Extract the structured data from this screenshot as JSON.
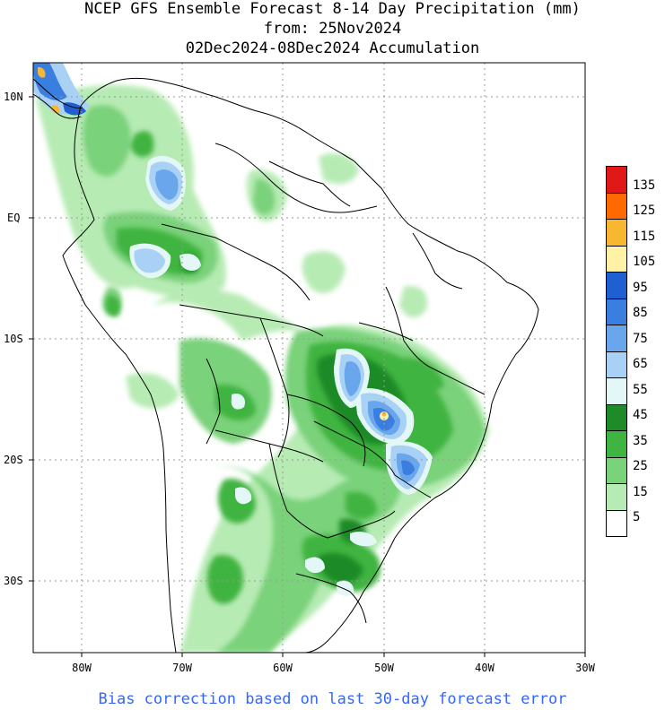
{
  "title": {
    "line1": "NCEP GFS Ensemble Forecast 8-14 Day Precipitation (mm)",
    "line2": "from: 25Nov2024",
    "line3": "02Dec2024-08Dec2024 Accumulation"
  },
  "axes": {
    "lat_labels": [
      "10N",
      "EQ",
      "10S",
      "20S",
      "30S"
    ],
    "lon_labels": [
      "80W",
      "70W",
      "60W",
      "50W",
      "40W",
      "30W"
    ]
  },
  "legend": {
    "levels": [
      "135",
      "125",
      "115",
      "105",
      "95",
      "85",
      "75",
      "65",
      "55",
      "45",
      "35",
      "25",
      "15",
      "5"
    ],
    "colors": [
      "#e01818",
      "#ff6a00",
      "#f7b731",
      "#fff2a6",
      "#1f5fd1",
      "#3a7ee0",
      "#6aa6ec",
      "#a8d1f5",
      "#e4f7f7",
      "#1e8a28",
      "#3fb441",
      "#7ad27a",
      "#b7ebb4",
      "#ffffff"
    ]
  },
  "footer": "Bias correction based on last 30-day forecast error"
}
